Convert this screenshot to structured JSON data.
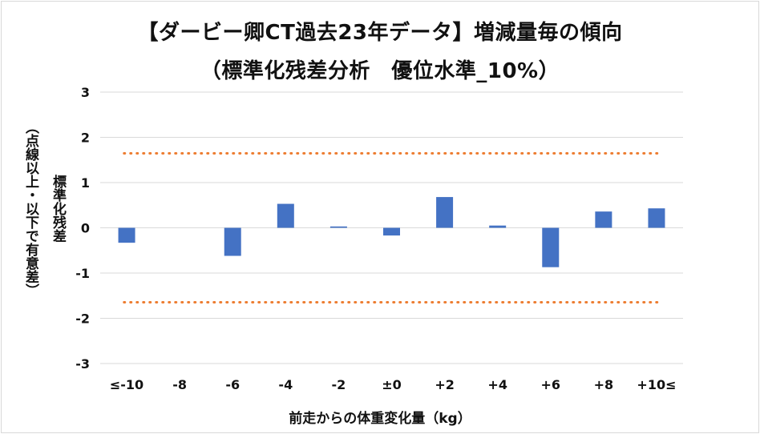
{
  "chart_data": {
    "type": "bar",
    "title": "【ダービー卿CT過去23年データ】増減量毎の傾向",
    "subtitle": "（標準化残差分析　優位水準_10%）",
    "ylabel": "標準化残差",
    "ylabel_note": "（点線以上・以下で有意差）",
    "xlabel": "前走からの体重変化量（kg）",
    "categories": [
      "≤-10",
      "-8",
      "-6",
      "-4",
      "-2",
      "±0",
      "+2",
      "+4",
      "+6",
      "+8",
      "+10≤"
    ],
    "values": [
      -0.33,
      0,
      -0.62,
      0.53,
      0.03,
      -0.17,
      0.68,
      0.05,
      -0.87,
      0.36,
      0.43
    ],
    "ylim": [
      -3,
      3
    ],
    "yticks": [
      -3,
      -2,
      -1,
      0,
      1,
      2,
      3
    ],
    "threshold": 1.645,
    "colors": {
      "bar": "#4472c4",
      "threshold": "#ed7d31",
      "grid": "#d9d9d9"
    }
  }
}
